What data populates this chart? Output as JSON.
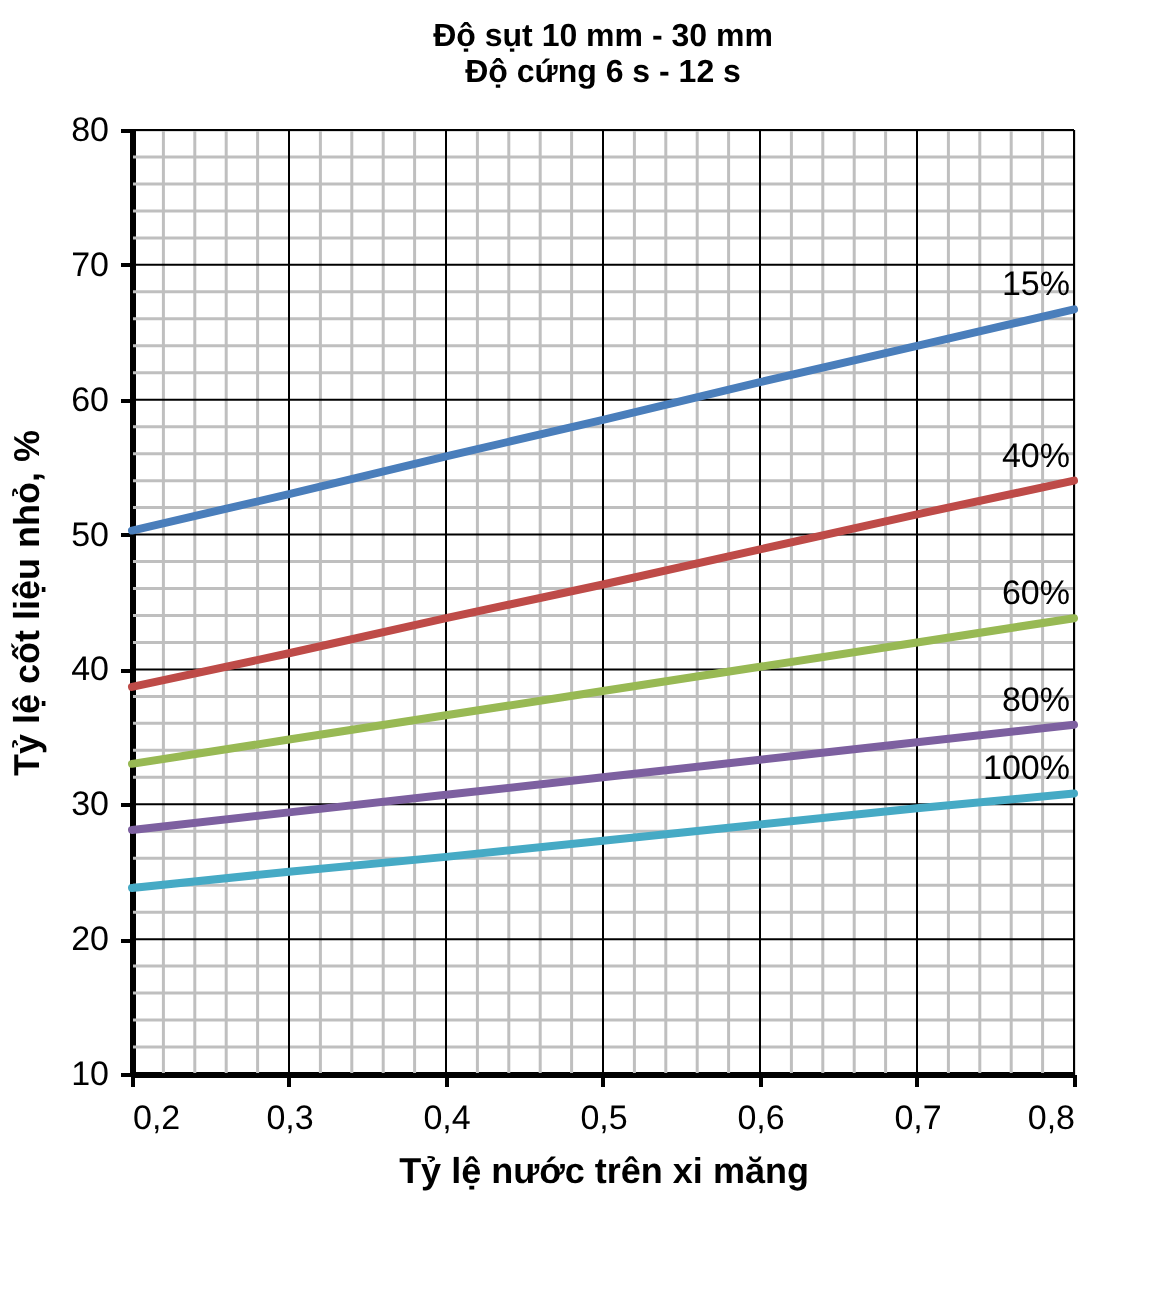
{
  "chart_data": {
    "type": "line",
    "title": [
      "Độ sụt 10 mm - 30 mm",
      "Độ cứng 6 s - 12 s"
    ],
    "xlabel": "Tỷ lệ nước trên xi măng",
    "ylabel": "Tỷ lệ cốt liệu nhỏ, %",
    "x": [
      0.2,
      0.3,
      0.4,
      0.5,
      0.6,
      0.7,
      0.8
    ],
    "series": [
      {
        "name": "15%",
        "color": "#4a7ebb",
        "values": [
          50.3,
          53.0,
          55.8,
          58.5,
          61.3,
          64.0,
          66.7
        ]
      },
      {
        "name": "40%",
        "color": "#be4b48",
        "values": [
          38.7,
          41.2,
          43.8,
          46.3,
          48.9,
          51.5,
          54.0
        ]
      },
      {
        "name": "60%",
        "color": "#98b954",
        "values": [
          33.0,
          34.8,
          36.6,
          38.4,
          40.2,
          42.0,
          43.8
        ]
      },
      {
        "name": "80%",
        "color": "#7d60a0",
        "values": [
          28.1,
          29.4,
          30.7,
          32.0,
          33.3,
          34.6,
          35.9
        ]
      },
      {
        "name": "100%",
        "color": "#46aac5",
        "values": [
          23.8,
          25.0,
          26.1,
          27.3,
          28.5,
          29.7,
          30.8
        ]
      }
    ],
    "xlim": [
      0.2,
      0.8
    ],
    "xticks": [
      {
        "value": 0.2,
        "label": "0,2"
      },
      {
        "value": 0.3,
        "label": "0,3"
      },
      {
        "value": 0.4,
        "label": "0,4"
      },
      {
        "value": 0.5,
        "label": "0,5"
      },
      {
        "value": 0.6,
        "label": "0,6"
      },
      {
        "value": 0.7,
        "label": "0,7"
      },
      {
        "value": 0.8,
        "label": "0,8"
      }
    ],
    "ylim": [
      10,
      80
    ],
    "yticks": [
      10,
      20,
      30,
      40,
      50,
      60,
      70,
      80
    ],
    "grid": true,
    "legend": false,
    "marker": "none",
    "line_style": "solid"
  }
}
